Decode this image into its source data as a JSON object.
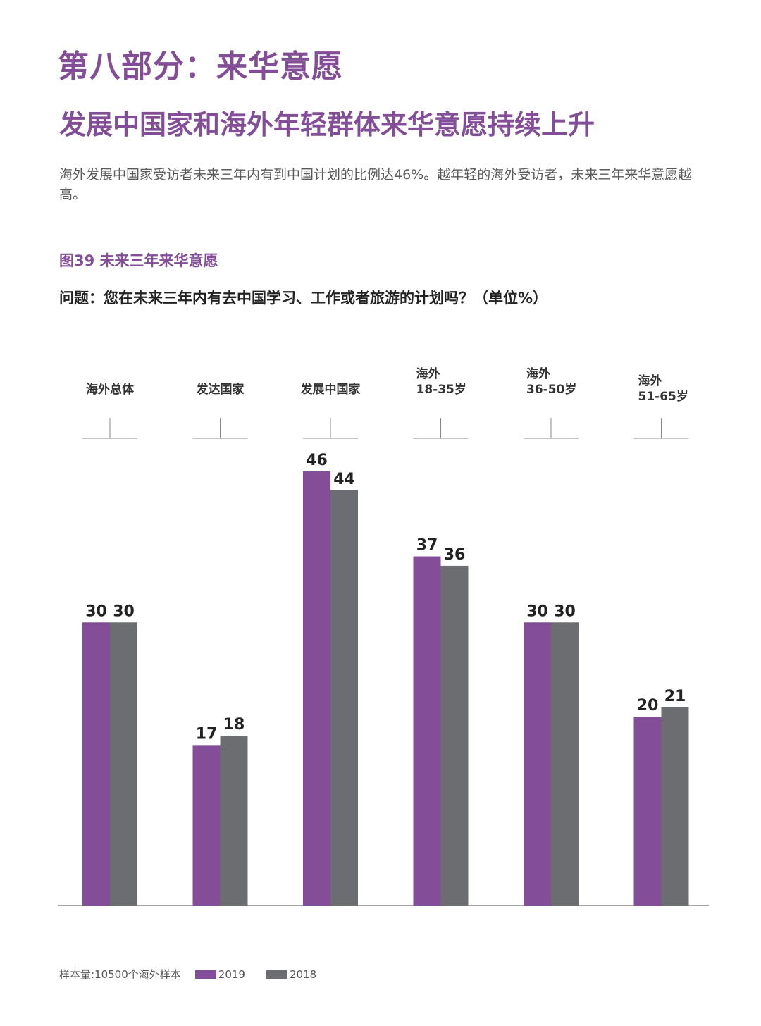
{
  "page": {
    "section_title": "第八部分：来华意愿",
    "headline": "发展中国家和海外年轻群体来华意愿持续上升",
    "intro": "海外发展中国家受访者未来三年内有到中国计划的比例达46%。越年轻的海外受访者，未来三年来华意愿越高。",
    "figure_label": "图39  未来三年来华意愿",
    "question": "问题：您在未来三年内有去中国学习、工作或者旅游的计划吗？（单位%）",
    "sample_note": "样本量:10500个海外样本"
  },
  "colors": {
    "purple": "#834e97",
    "gray": "#6c6d70",
    "axis": "#888888"
  },
  "chart_data": {
    "type": "bar",
    "categories": [
      [
        "海外总体"
      ],
      [
        "发达国家"
      ],
      [
        "发展中国家"
      ],
      [
        "海外",
        "18-35岁"
      ],
      [
        "海外",
        "36-50岁"
      ],
      [
        "海外",
        "51-65岁"
      ]
    ],
    "series": [
      {
        "name": "2019",
        "values": [
          30,
          17,
          46,
          37,
          30,
          20
        ]
      },
      {
        "name": "2018",
        "values": [
          30,
          18,
          44,
          36,
          30,
          21
        ]
      }
    ],
    "ylim": [
      0,
      46
    ],
    "grid": false,
    "legend_position": "bottom"
  }
}
